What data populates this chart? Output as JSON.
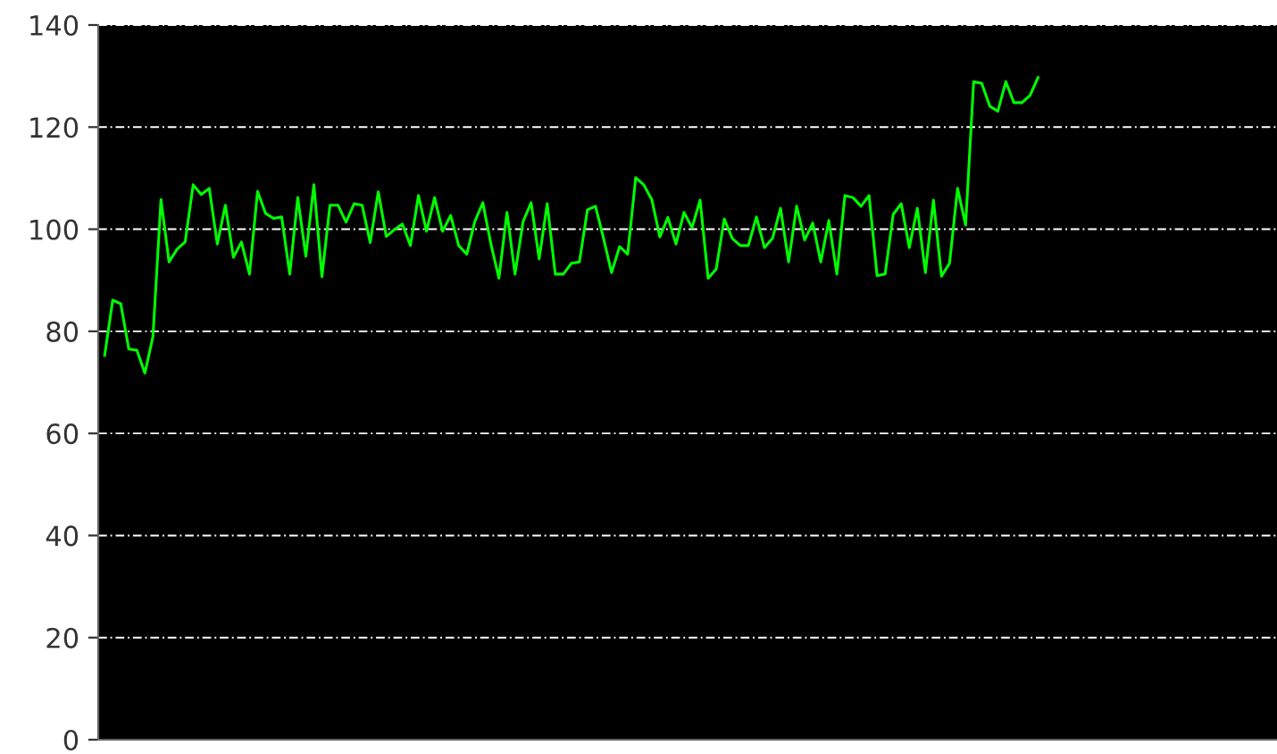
{
  "chart_data": {
    "type": "line",
    "categories": [
      null,
      null,
      null,
      null,
      null,
      null,
      null,
      null,
      null,
      null,
      null,
      null,
      null,
      null,
      null,
      null,
      null,
      null,
      null,
      null,
      null,
      null,
      null,
      null,
      null,
      null,
      null,
      null,
      null,
      null,
      null,
      null,
      null,
      null,
      null,
      null,
      null,
      null,
      null,
      null,
      null,
      null,
      null,
      null,
      null,
      null,
      null,
      null,
      null,
      null,
      null,
      null,
      null,
      null,
      null,
      null,
      null,
      null,
      null,
      null,
      null,
      null,
      null,
      null,
      null,
      null,
      null,
      null,
      null,
      null,
      null,
      null,
      null,
      null,
      null,
      null,
      null,
      null,
      null,
      null,
      null,
      null,
      null,
      null,
      null,
      null,
      null,
      null,
      null,
      null,
      null,
      null,
      null,
      null,
      null,
      null,
      null,
      null,
      null,
      null,
      null,
      null,
      null,
      null,
      null,
      null,
      null,
      null,
      null,
      null,
      null,
      null,
      null,
      null,
      null,
      null,
      null,
      null,
      null,
      null,
      null,
      null,
      null,
      null,
      null,
      null,
      null,
      null,
      null,
      null,
      null,
      null,
      null,
      null,
      null,
      null,
      null,
      null,
      null,
      null,
      null,
      null,
      null,
      null,
      null,
      null
    ],
    "series": [
      {
        "color": "#00ff00",
        "values": [
          75.3,
          86.1,
          85.4,
          76.5,
          76.3,
          71.8,
          79,
          105.8,
          93.6,
          96.1,
          97.5,
          108.7,
          106.8,
          108,
          97.1,
          104.7,
          94.5,
          97.5,
          91.2,
          107.4,
          103.1,
          102.1,
          102.4,
          91.2,
          106.2,
          94.7,
          108.7,
          90.7,
          104.7,
          104.7,
          101.4,
          105,
          104.7,
          97.4,
          107.3,
          98.6,
          99.9,
          101,
          96.8,
          106.6,
          99.6,
          106.2,
          99.6,
          102.7,
          96.8,
          95.1,
          101.5,
          105.2,
          97.1,
          90.4,
          103.3,
          91.2,
          101.5,
          105.2,
          94.2,
          105,
          91.2,
          91.2,
          93.3,
          93.6,
          103.8,
          104.5,
          98.2,
          91.5,
          96.6,
          95.1,
          110.1,
          108.7,
          105.8,
          98.5,
          102.3,
          97.1,
          103.3,
          100.3,
          105.7,
          90.4,
          92.2,
          102,
          98.2,
          96.8,
          96.8,
          102.4,
          96.4,
          98.2,
          104.1,
          93.6,
          104.5,
          97.9,
          101.2,
          93.6,
          101.7,
          91.2,
          106.6,
          106.2,
          104.5,
          106.6,
          90.9,
          91.2,
          102.9,
          105,
          96.4,
          104.1,
          91.5,
          105.7,
          90.8,
          93.3,
          108,
          100.8,
          128.9,
          128.6,
          124.1,
          123.1,
          128.9,
          124.8,
          124.8,
          126.2,
          129.7,
          null,
          null,
          null,
          null,
          null,
          null,
          null,
          null,
          null,
          null,
          null,
          null,
          null,
          null,
          null,
          null,
          null,
          null,
          null,
          null,
          null,
          null,
          null,
          null,
          null,
          null,
          null,
          null,
          null
        ]
      }
    ],
    "ylim": [
      0,
      140
    ],
    "yticks": [
      0,
      20,
      40,
      60,
      80,
      100,
      120,
      140
    ],
    "grid": "y",
    "tick_labels": "y",
    "legend": false,
    "marker": "none",
    "line_style": "solid"
  }
}
